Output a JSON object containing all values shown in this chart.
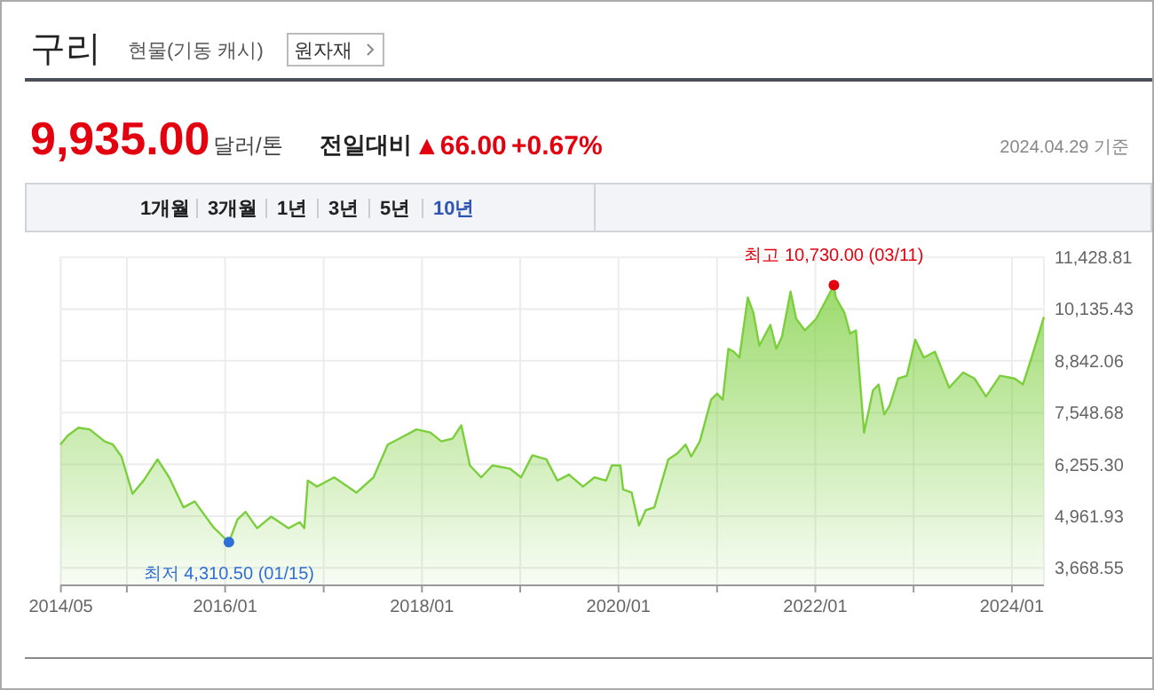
{
  "chart_data": {
    "type": "area",
    "title": "구리",
    "subtitle": "현물(기동 캐시)",
    "annotations": [
      "원자재",
      "9,935.00",
      "달러/톤",
      "전일대비",
      "▲66.00",
      "+0.67%",
      "2024.04.29 기준",
      "1개월",
      "3개월",
      "1년",
      "3년",
      "5년",
      "10년",
      {
        "text": "최고 10,730.00 (03/11)",
        "x": "2022-03-11",
        "y": 10730
      },
      {
        "text": "최저 4,310.50 (01/15)",
        "x": "2016-01-15",
        "y": 4310.5
      }
    ],
    "xlim": [
      "2014-04-29",
      "2024-04-29"
    ],
    "xticks": [
      {
        "value": "2014-05",
        "label": "2014/05"
      },
      {
        "value": "2015-01",
        "label": null
      },
      {
        "value": "2016-01",
        "label": "2016/01"
      },
      {
        "value": "2017-01",
        "label": null
      },
      {
        "value": "2018-01",
        "label": "2018/01"
      },
      {
        "value": "2019-01",
        "label": null
      },
      {
        "value": "2020-01",
        "label": "2020/01"
      },
      {
        "value": "2021-01",
        "label": null
      },
      {
        "value": "2022-01",
        "label": "2022/01"
      },
      {
        "value": "2023-01",
        "label": null
      },
      {
        "value": "2024-01",
        "label": "2024/01"
      }
    ],
    "ylim": [
      3233,
      11428.81
    ],
    "yticks": [
      {
        "value": 3668.55,
        "label": "3,668.55"
      },
      {
        "value": 4961.93,
        "label": "4,961.93"
      },
      {
        "value": 6255.3,
        "label": "6,255.30"
      },
      {
        "value": 7548.68,
        "label": "7,548.68"
      },
      {
        "value": 8842.06,
        "label": "8,842.06"
      },
      {
        "value": 10135.43,
        "label": "10,135.43"
      },
      {
        "value": 11428.81,
        "label": "11,428.81"
      }
    ],
    "grid": true,
    "series": [
      {
        "color": "#7ccf3c",
        "x": [
          "2014-04-29",
          "2014-05-26",
          "2014-07-05",
          "2014-08-16",
          "2014-10-10",
          "2014-11-10",
          "2014-12-12",
          "2015-01-22",
          "2015-03-04",
          "2015-04-25",
          "2015-06-07",
          "2015-07-30",
          "2015-09-10",
          "2015-10-12",
          "2015-11-19",
          "2016-01-15",
          "2016-02-16",
          "2016-03-17",
          "2016-04-29",
          "2016-06-20",
          "2016-08-23",
          "2016-10-04",
          "2016-10-21",
          "2016-11-03",
          "2016-12-07",
          "2017-02-09",
          "2017-05-03",
          "2017-07-05",
          "2017-08-27",
          "2017-10-09",
          "2017-12-12",
          "2018-02-01",
          "2018-03-14",
          "2018-04-25",
          "2018-05-27",
          "2018-06-28",
          "2018-08-09",
          "2018-09-20",
          "2018-11-23",
          "2019-01-04",
          "2019-02-15",
          "2019-04-08",
          "2019-05-19",
          "2019-07-01",
          "2019-08-22",
          "2019-10-04",
          "2019-11-16",
          "2019-12-07",
          "2020-01-08",
          "2020-01-18",
          "2020-02-19",
          "2020-03-17",
          "2020-04-11",
          "2020-05-13",
          "2020-07-04",
          "2020-08-05",
          "2020-09-06",
          "2020-09-27",
          "2020-10-29",
          "2020-12-10",
          "2021-01-01",
          "2021-01-22",
          "2021-02-12",
          "2021-03-04",
          "2021-03-25",
          "2021-04-25",
          "2021-05-16",
          "2021-06-07",
          "2021-07-18",
          "2021-08-09",
          "2021-08-30",
          "2021-10-01",
          "2021-10-22",
          "2021-11-23",
          "2022-01-04",
          "2022-03-11",
          "2022-03-18",
          "2022-04-19",
          "2022-05-10",
          "2022-06-01",
          "2022-07-01",
          "2022-08-03",
          "2022-08-24",
          "2022-09-14",
          "2022-10-04",
          "2022-11-05",
          "2022-12-07",
          "2023-01-07",
          "2023-02-08",
          "2023-03-21",
          "2023-05-13",
          "2023-07-04",
          "2023-08-15",
          "2023-09-27",
          "2023-11-18",
          "2024-01-11",
          "2024-02-11",
          "2024-03-14",
          "2024-04-29"
        ],
        "values": [
          6750,
          6970,
          7170,
          7130,
          6830,
          6750,
          6450,
          5520,
          5850,
          6380,
          5930,
          5180,
          5330,
          5030,
          4680,
          4310,
          4880,
          5070,
          4660,
          4950,
          4660,
          4810,
          4660,
          5850,
          5700,
          5930,
          5550,
          5930,
          6750,
          6900,
          7130,
          7050,
          6830,
          6900,
          7230,
          6230,
          5930,
          6230,
          6150,
          5930,
          6480,
          6380,
          5850,
          6000,
          5700,
          5930,
          5850,
          6230,
          6230,
          5630,
          5550,
          4730,
          5110,
          5180,
          6380,
          6520,
          6750,
          6450,
          6830,
          7870,
          8020,
          7870,
          9140,
          9070,
          8920,
          10420,
          10040,
          9220,
          9740,
          9140,
          9440,
          10570,
          9890,
          9600,
          9890,
          10730,
          10420,
          10040,
          9520,
          9600,
          7050,
          8100,
          8250,
          7500,
          7720,
          8400,
          8470,
          9370,
          8920,
          9070,
          8170,
          8550,
          8400,
          7950,
          8470,
          8400,
          8250,
          8920,
          9935
        ]
      }
    ]
  }
}
